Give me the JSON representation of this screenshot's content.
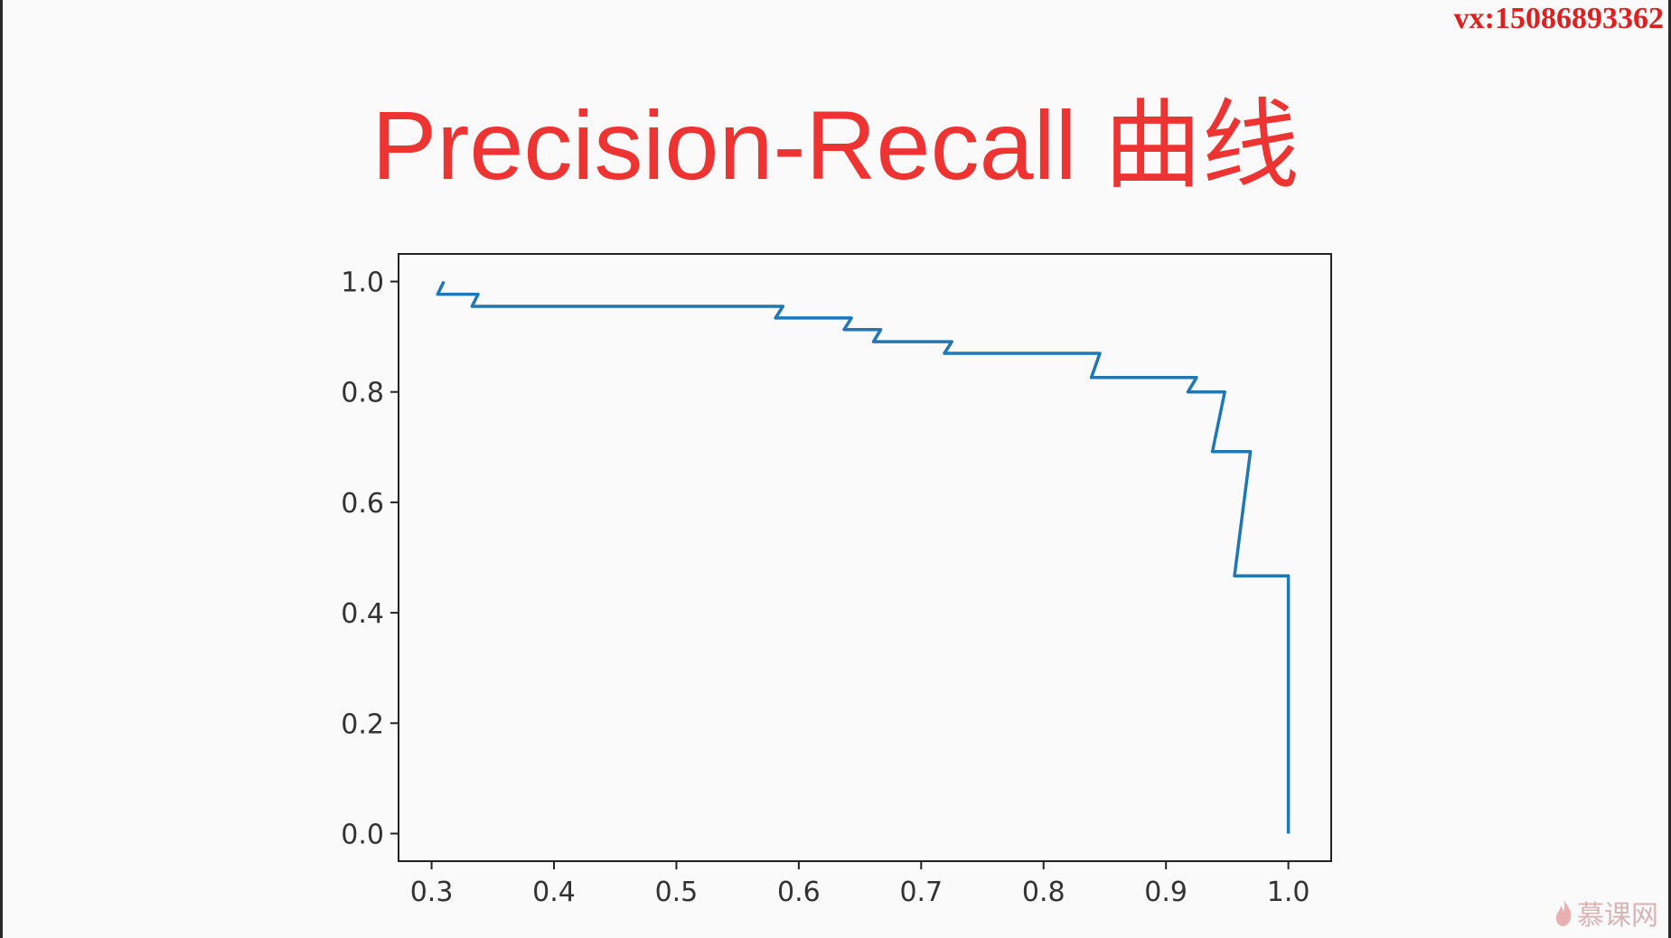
{
  "watermark": "vx:15086893362",
  "slide": {
    "title": "Precision-Recall 曲线"
  },
  "logo": {
    "text": "慕课网",
    "icon": "flame-icon"
  },
  "chart_data": {
    "type": "line",
    "title": "",
    "xlabel": "",
    "ylabel": "",
    "xlim": [
      0.273,
      1.035
    ],
    "ylim": [
      -0.05,
      1.05
    ],
    "xticks": [
      "0.3",
      "0.4",
      "0.5",
      "0.6",
      "0.7",
      "0.8",
      "0.9",
      "1.0"
    ],
    "yticks": [
      "0.0",
      "0.2",
      "0.4",
      "0.6",
      "0.8",
      "1.0"
    ],
    "grid": false,
    "line_color": "#1f77b4",
    "series": [
      {
        "x": [
          0.31,
          0.305,
          0.338,
          0.333,
          0.587,
          0.581,
          0.643,
          0.637,
          0.667,
          0.661,
          0.725,
          0.719,
          0.846,
          0.839,
          0.925,
          0.918,
          0.948,
          0.938,
          0.969,
          0.956,
          1.0,
          1.0
        ],
        "y": [
          1.0,
          0.977,
          0.977,
          0.955,
          0.955,
          0.934,
          0.934,
          0.913,
          0.913,
          0.891,
          0.891,
          0.87,
          0.87,
          0.826,
          0.826,
          0.8,
          0.8,
          0.692,
          0.692,
          0.467,
          0.467,
          0.0
        ]
      }
    ]
  }
}
